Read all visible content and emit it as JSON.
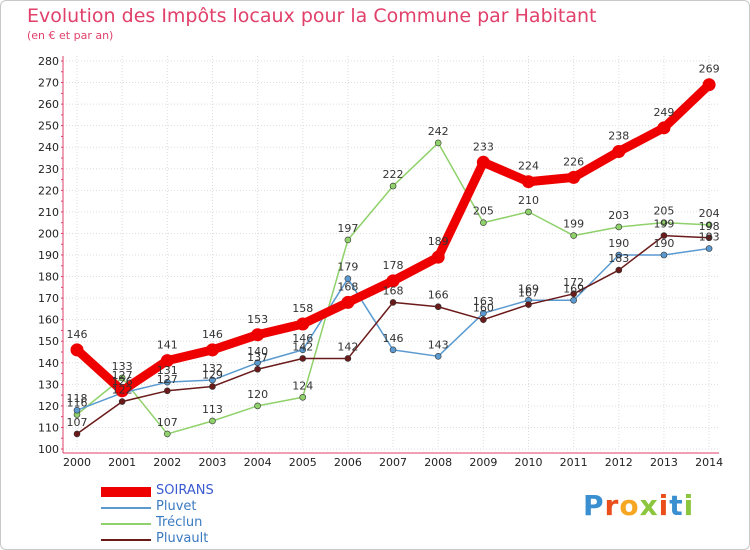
{
  "header": {
    "title": "Evolution des Impôts locaux pour la Commune par Habitant",
    "subtitle": "(en € et par an)"
  },
  "logo": {
    "text": "Proxiti",
    "colors": [
      "#3a8fd0",
      "#e94e1b",
      "#f5a623",
      "#8cc63f",
      "#e94e1b",
      "#3a8fd0",
      "#8cc63f"
    ]
  },
  "chart_data": {
    "type": "line",
    "title": "Evolution des Impôts locaux pour la Commune par Habitant",
    "subtitle": "(en € et par an)",
    "xlabel": "",
    "ylabel": "",
    "ylim": [
      100,
      280
    ],
    "yticks": [
      100,
      110,
      120,
      130,
      140,
      150,
      160,
      170,
      180,
      190,
      200,
      210,
      220,
      230,
      240,
      250,
      260,
      270,
      280
    ],
    "grid": true,
    "legend_position": "bottom-left",
    "x": [
      "2000",
      "2001",
      "2002",
      "2003",
      "2004",
      "2005",
      "2006",
      "2007",
      "2008",
      "2009",
      "2010",
      "2011",
      "2012",
      "2013",
      "2014"
    ],
    "series": [
      {
        "name": "Tréclun",
        "color": "#8fd16a",
        "emphasis": false,
        "values": [
          116,
          133,
          107,
          113,
          120,
          124,
          197,
          222,
          242,
          205,
          210,
          199,
          203,
          205,
          204
        ]
      },
      {
        "name": "Pluvet",
        "color": "#5a9ad0",
        "emphasis": false,
        "values": [
          118,
          126,
          131,
          132,
          140,
          146,
          179,
          146,
          143,
          163,
          169,
          169,
          190,
          190,
          193
        ]
      },
      {
        "name": "Pluvault",
        "color": "#6b1a1a",
        "emphasis": false,
        "values": [
          107,
          122,
          127,
          129,
          137,
          142,
          142,
          168,
          166,
          160,
          167,
          172,
          183,
          199,
          198
        ]
      },
      {
        "name": "SOIRANS",
        "color": "#ee0000",
        "emphasis": true,
        "values": [
          146,
          127,
          141,
          146,
          153,
          158,
          168,
          178,
          189,
          233,
          224,
          226,
          238,
          249,
          269
        ]
      }
    ],
    "data_labels": [
      {
        "series": "SOIRANS",
        "values": [
          "146",
          "127",
          "141",
          "146",
          "153",
          "158",
          "168",
          "178",
          "189",
          "233",
          "224",
          "226",
          "238",
          "249",
          "269"
        ]
      }
    ]
  },
  "legend": [
    {
      "label": "SOIRANS",
      "color": "#ee0000",
      "weight": "thick"
    },
    {
      "label": "Pluvet",
      "color": "#5a9ad0",
      "weight": "thin"
    },
    {
      "label": "Tréclun",
      "color": "#8fd16a",
      "weight": "thin"
    },
    {
      "label": "Pluvault",
      "color": "#6b1a1a",
      "weight": "thin"
    }
  ]
}
